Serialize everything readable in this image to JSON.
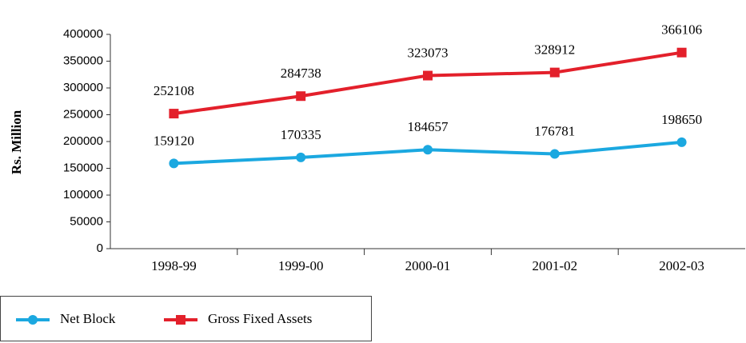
{
  "chart_data": {
    "type": "line",
    "y_label": "Rs. Million",
    "categories": [
      "1998-99",
      "1999-00",
      "2000-01",
      "2001-02",
      "2002-03"
    ],
    "series": [
      {
        "name": "Net Block",
        "color": "#1ba8e0",
        "marker": "circle",
        "values": [
          159120,
          170335,
          184657,
          176781,
          198650
        ]
      },
      {
        "name": "Gross Fixed Assets",
        "color": "#e3202b",
        "marker": "square",
        "values": [
          252108,
          284738,
          323073,
          328912,
          366106
        ]
      }
    ],
    "ylim": [
      0,
      400000
    ],
    "yticks": [
      0,
      50000,
      100000,
      150000,
      200000,
      250000,
      300000,
      350000,
      400000
    ],
    "grid": false
  }
}
